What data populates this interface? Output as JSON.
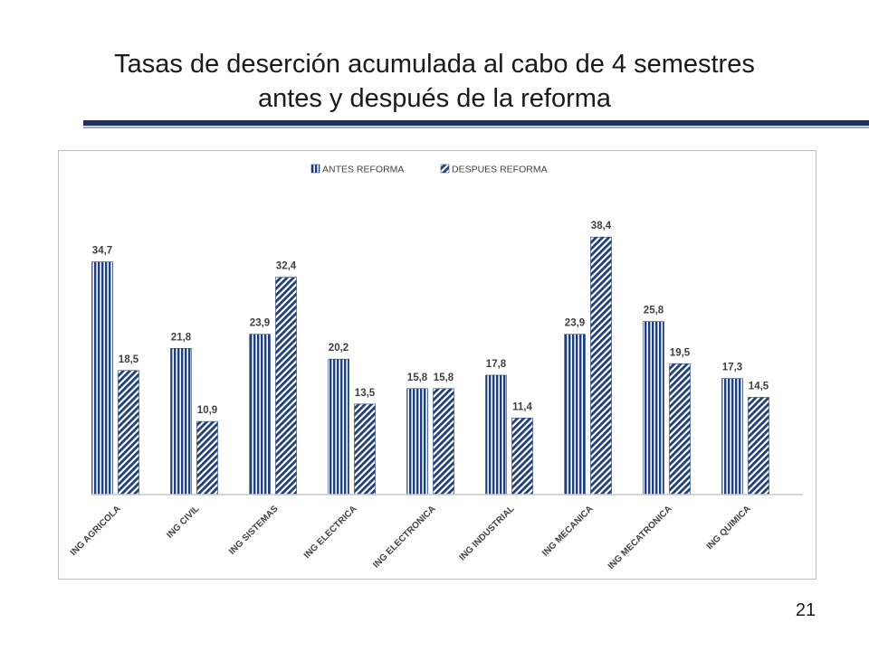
{
  "slide": {
    "title_line1": "Tasas de deserción acumulada al cabo de 4 semestres",
    "title_line2": "antes y después de la reforma",
    "page_number": "21"
  },
  "chart_data": {
    "type": "bar",
    "title": "",
    "xlabel": "",
    "ylabel": "",
    "ylim": [
      0,
      40
    ],
    "grid": false,
    "legend_position": "top-center",
    "categories": [
      "ING AGRICOLA",
      "ING CIVIL",
      "ING SISTEMAS",
      "ING ELECTRICA",
      "ING ELECTRONICA",
      "ING INDUSTRIAL",
      "ING MECANICA",
      "ING MECATRONICA",
      "ING QUIMICA"
    ],
    "series": [
      {
        "name": "ANTES REFORMA",
        "pattern": "vertical-stripes",
        "color": "#1f3f7a",
        "values": [
          34.7,
          21.8,
          23.9,
          20.2,
          15.8,
          17.8,
          23.9,
          25.8,
          17.3
        ],
        "labels": [
          "34,7",
          "21,8",
          "23,9",
          "20,2",
          "15,8",
          "17,8",
          "23,9",
          "25,8",
          "17,3"
        ]
      },
      {
        "name": "DESPUES REFORMA",
        "pattern": "diagonal-stripes",
        "color": "#1f3f7a",
        "values": [
          18.5,
          10.9,
          32.4,
          13.5,
          15.8,
          11.4,
          38.4,
          19.5,
          14.5
        ],
        "labels": [
          "18,5",
          "10,9",
          "32,4",
          "13,5",
          "15,8",
          "11,4",
          "38,4",
          "19,5",
          "14,5"
        ]
      }
    ]
  }
}
